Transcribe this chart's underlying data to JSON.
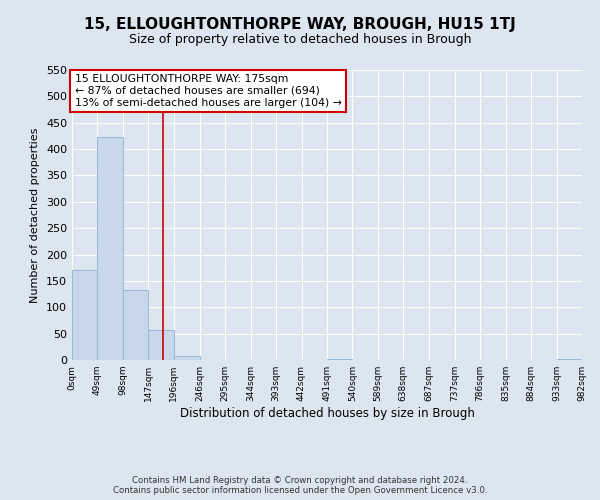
{
  "title1": "15, ELLOUGHTONTHORPE WAY, BROUGH, HU15 1TJ",
  "title2": "Size of property relative to detached houses in Brough",
  "xlabel": "Distribution of detached houses by size in Brough",
  "ylabel": "Number of detached properties",
  "bar_edges": [
    0,
    49,
    98,
    147,
    196,
    246,
    295,
    344,
    393,
    442,
    491,
    540,
    589,
    638,
    687,
    737,
    786,
    835,
    884,
    933,
    982
  ],
  "bar_heights": [
    170,
    422,
    132,
    56,
    7,
    0,
    0,
    0,
    0,
    0,
    2,
    0,
    0,
    0,
    0,
    0,
    0,
    0,
    0,
    2
  ],
  "bar_color": "#c8d8ea",
  "bar_edge_color": "#9ab8d4",
  "property_line_x": 175,
  "ylim": [
    0,
    550
  ],
  "xlim": [
    0,
    982
  ],
  "tick_labels": [
    "0sqm",
    "49sqm",
    "98sqm",
    "147sqm",
    "196sqm",
    "246sqm",
    "295sqm",
    "344sqm",
    "393sqm",
    "442sqm",
    "491sqm",
    "540sqm",
    "589sqm",
    "638sqm",
    "687sqm",
    "737sqm",
    "786sqm",
    "835sqm",
    "884sqm",
    "933sqm",
    "982sqm"
  ],
  "annotation_box_text_line1": "15 ELLOUGHTONTHORPE WAY: 175sqm",
  "annotation_box_text_line2": "← 87% of detached houses are smaller (694)",
  "annotation_box_text_line3": "13% of semi-detached houses are larger (104) →",
  "property_line_color": "#cc0000",
  "annotation_box_color": "#ffffff",
  "annotation_box_edge_color": "#cc0000",
  "footer1": "Contains HM Land Registry data © Crown copyright and database right 2024.",
  "footer2": "Contains public sector information licensed under the Open Government Licence v3.0.",
  "bg_color": "#dce6f0",
  "grid_color": "#ffffff",
  "title_fontsize": 11,
  "subtitle_fontsize": 9,
  "yticks": [
    0,
    50,
    100,
    150,
    200,
    250,
    300,
    350,
    400,
    450,
    500,
    550
  ]
}
